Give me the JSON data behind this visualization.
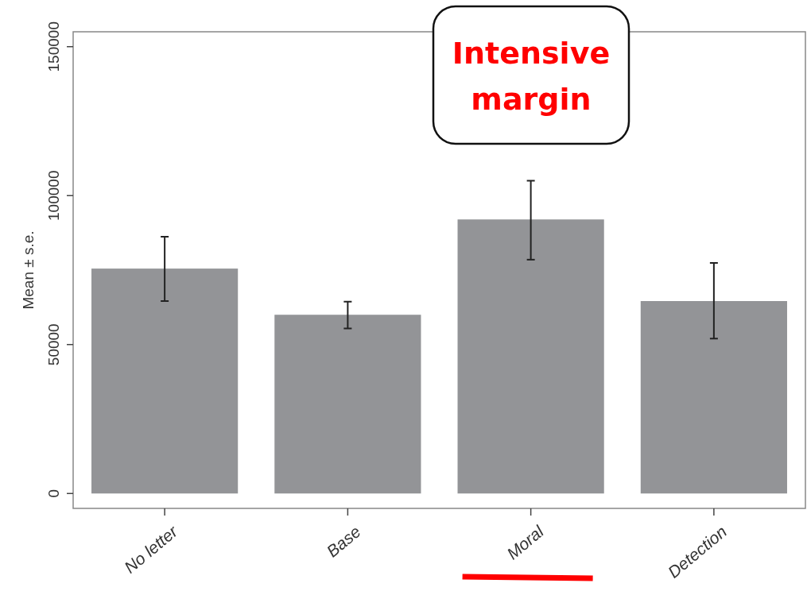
{
  "chart_data": {
    "type": "bar",
    "ylabel": "Mean ± s.e.",
    "categories": [
      "No letter",
      "Base",
      "Moral",
      "Detection"
    ],
    "values": [
      75500,
      60000,
      92000,
      64600
    ],
    "errors": [
      [
        64600,
        86200
      ],
      [
        55400,
        64400
      ],
      [
        78500,
        105000
      ],
      [
        52000,
        77400
      ]
    ],
    "color": "#939497",
    "ylim": [
      -5000,
      155000
    ],
    "yticks": [
      0,
      50000,
      100000,
      150000
    ],
    "grid": false,
    "annotations": [
      "Intensive margin"
    ]
  }
}
